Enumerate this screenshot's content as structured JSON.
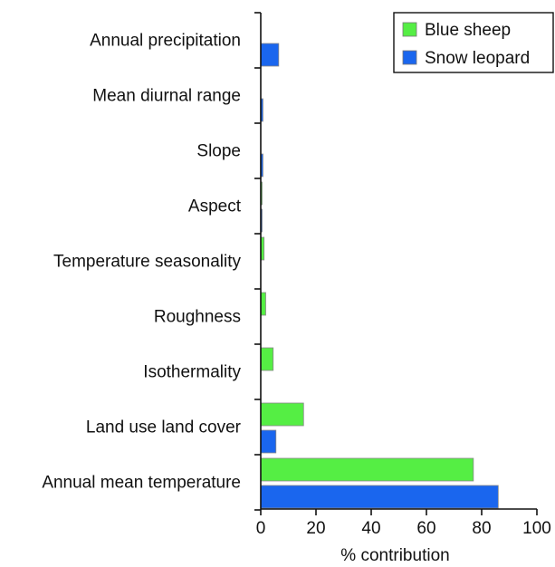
{
  "chart_data": {
    "type": "bar",
    "orientation": "horizontal",
    "title": "",
    "xlabel": "% contribution",
    "ylabel": "",
    "xlim": [
      0,
      100
    ],
    "xticks": [
      "0",
      "20",
      "40",
      "60",
      "80",
      "100"
    ],
    "grid": false,
    "legend_position": "top-right",
    "categories": [
      "Annual precipitation",
      "Mean diurnal range",
      "Slope",
      "Aspect",
      "Temperature seasonality",
      "Roughness",
      "Isothermality",
      "Land use land cover",
      "Annual mean temperature"
    ],
    "series": [
      {
        "name": "Blue sheep",
        "color": "#55ee44",
        "values": [
          0,
          0,
          0,
          0.3,
          1.2,
          1.8,
          4.5,
          15.5,
          77
        ]
      },
      {
        "name": "Snow leopard",
        "color": "#1a66ee",
        "values": [
          6.5,
          0.8,
          0.8,
          0.3,
          0,
          0,
          0,
          5.5,
          86
        ]
      }
    ]
  }
}
